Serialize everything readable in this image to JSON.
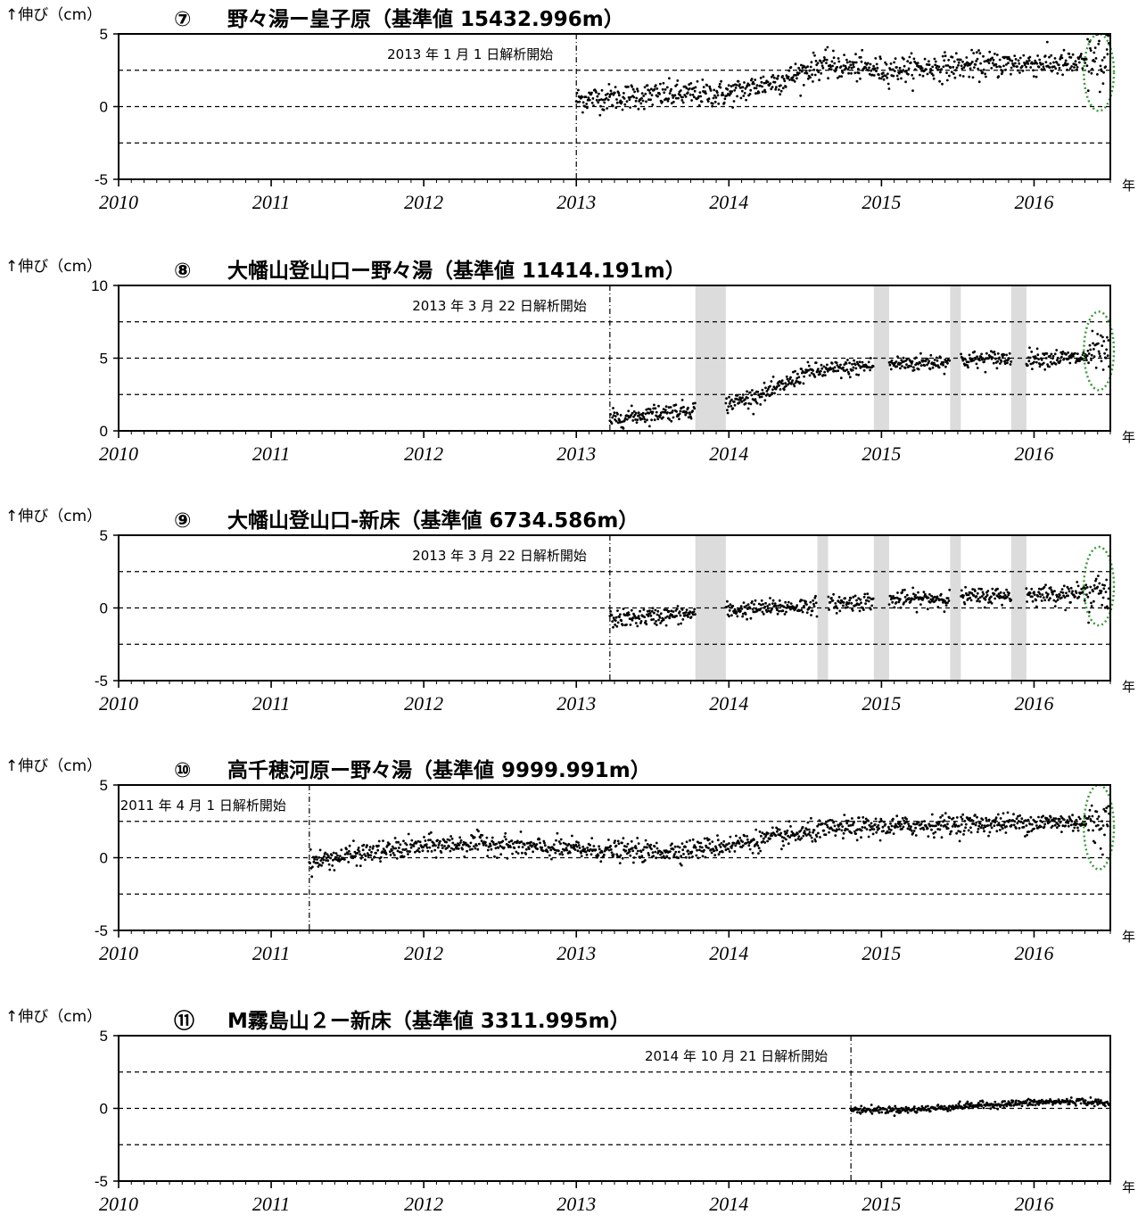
{
  "x_unit_label": "年",
  "y_axis_label": "↑伸び（cm）",
  "x_tick_labels": [
    "2010",
    "2011",
    "2012",
    "2013",
    "2014",
    "2015",
    "2016"
  ],
  "chart_data": [
    {
      "type": "scatter",
      "number": "⑦",
      "title": "野々湯ー皇子原（基準値 15432.996m）",
      "annotation": "2013 年 1 月 1 日解析開始",
      "start": 2013.0,
      "xlim": [
        2010,
        2016.5
      ],
      "ylim": [
        -5,
        5
      ],
      "yticks": [
        "5",
        "0",
        "-5"
      ],
      "ytick_values": [
        5,
        0,
        -5
      ],
      "dashed_lines": [
        2.5,
        0,
        -2.5
      ],
      "gaps": [],
      "highlight": {
        "from": 2016.35,
        "to": 2016.5,
        "ymin": -0.3,
        "ymax": 5.0,
        "color": "#3a9a3a"
      },
      "trend": [
        [
          2013.0,
          0.5
        ],
        [
          2013.5,
          0.8
        ],
        [
          2014.0,
          0.9
        ],
        [
          2014.4,
          2.0
        ],
        [
          2014.6,
          2.9
        ],
        [
          2015.0,
          2.5
        ],
        [
          2015.5,
          2.8
        ],
        [
          2016.0,
          3.0
        ],
        [
          2016.3,
          2.9
        ],
        [
          2016.5,
          3.2
        ]
      ],
      "noise": 0.45
    },
    {
      "type": "scatter",
      "number": "⑧",
      "title": "大幡山登山口ー野々湯（基準値 11414.191m）",
      "annotation": "2013 年 3 月 22 日解析開始",
      "start": 2013.22,
      "xlim": [
        2010,
        2016.5
      ],
      "ylim": [
        0,
        10
      ],
      "yticks": [
        "10",
        "5",
        "0"
      ],
      "ytick_values": [
        10,
        5,
        0
      ],
      "dashed_lines": [
        7.5,
        5,
        2.5
      ],
      "gaps": [
        [
          2013.78,
          2013.98
        ],
        [
          2014.95,
          2015.05
        ],
        [
          2015.45,
          2015.52
        ],
        [
          2015.85,
          2015.95
        ]
      ],
      "highlight": {
        "from": 2016.35,
        "to": 2016.5,
        "ymin": 2.8,
        "ymax": 8.2,
        "color": "#3a9a3a"
      },
      "trend": [
        [
          2013.22,
          0.8
        ],
        [
          2013.5,
          1.2
        ],
        [
          2013.78,
          1.5
        ],
        [
          2013.98,
          1.8
        ],
        [
          2014.3,
          2.8
        ],
        [
          2014.5,
          4.0
        ],
        [
          2014.95,
          4.5
        ],
        [
          2015.45,
          4.8
        ],
        [
          2015.85,
          5.0
        ],
        [
          2016.3,
          5.0
        ],
        [
          2016.5,
          5.3
        ]
      ],
      "noise": 0.3
    },
    {
      "type": "scatter",
      "number": "⑨",
      "title": "大幡山登山口-新床（基準値 6734.586m）",
      "annotation": "2013 年 3 月 22 日解析開始",
      "start": 2013.22,
      "xlim": [
        2010,
        2016.5
      ],
      "ylim": [
        -5,
        5
      ],
      "yticks": [
        "5",
        "0",
        "-5"
      ],
      "ytick_values": [
        5,
        0,
        -5
      ],
      "dashed_lines": [
        2.5,
        0,
        -2.5
      ],
      "gaps": [
        [
          2013.78,
          2013.98
        ],
        [
          2014.58,
          2014.65
        ],
        [
          2014.95,
          2015.05
        ],
        [
          2015.45,
          2015.52
        ],
        [
          2015.85,
          2015.95
        ]
      ],
      "highlight": {
        "from": 2016.35,
        "to": 2016.5,
        "ymin": -1.2,
        "ymax": 4.2,
        "color": "#3a9a3a"
      },
      "trend": [
        [
          2013.22,
          -0.8
        ],
        [
          2013.78,
          -0.4
        ],
        [
          2013.98,
          -0.2
        ],
        [
          2014.58,
          0.2
        ],
        [
          2014.95,
          0.5
        ],
        [
          2015.45,
          0.7
        ],
        [
          2015.85,
          0.9
        ],
        [
          2016.3,
          1.0
        ],
        [
          2016.5,
          1.2
        ]
      ],
      "noise": 0.3
    },
    {
      "type": "scatter",
      "number": "⑩",
      "title": "高千穂河原ー野々湯（基準値 9999.991m）",
      "annotation": "2011 年 4 月 1 日解析開始",
      "start": 2011.25,
      "xlim": [
        2010,
        2016.5
      ],
      "ylim": [
        -5,
        5
      ],
      "yticks": [
        "5",
        "0",
        "-5"
      ],
      "ytick_values": [
        5,
        0,
        -5
      ],
      "dashed_lines": [
        2.5,
        0,
        -2.5
      ],
      "gaps": [],
      "highlight": {
        "from": 2016.35,
        "to": 2016.5,
        "ymin": -0.8,
        "ymax": 5.0,
        "color": "#3a9a3a"
      },
      "trend": [
        [
          2011.25,
          -0.3
        ],
        [
          2011.6,
          0.3
        ],
        [
          2012.0,
          0.8
        ],
        [
          2012.4,
          1.0
        ],
        [
          2012.7,
          0.7
        ],
        [
          2013.5,
          0.4
        ],
        [
          2013.8,
          0.6
        ],
        [
          2014.4,
          1.5
        ],
        [
          2014.7,
          2.0
        ],
        [
          2015.0,
          2.1
        ],
        [
          2015.5,
          2.3
        ],
        [
          2016.0,
          2.4
        ],
        [
          2016.5,
          2.5
        ]
      ],
      "noise": 0.35
    },
    {
      "type": "scatter",
      "number": "⑪",
      "title": "M霧島山２ー新床（基準値 3311.995m）",
      "annotation": "2014 年 10 月 21 日解析開始",
      "start": 2014.8,
      "xlim": [
        2010,
        2016.5
      ],
      "ylim": [
        -5,
        5
      ],
      "yticks": [
        "5",
        "0",
        "-5"
      ],
      "ytick_values": [
        5,
        0,
        -5
      ],
      "dashed_lines": [
        2.5,
        0,
        -2.5
      ],
      "gaps": [],
      "highlight": null,
      "trend": [
        [
          2014.8,
          -0.1
        ],
        [
          2015.2,
          -0.1
        ],
        [
          2015.6,
          0.2
        ],
        [
          2016.0,
          0.4
        ],
        [
          2016.3,
          0.5
        ],
        [
          2016.5,
          0.3
        ]
      ],
      "noise": 0.12
    }
  ]
}
